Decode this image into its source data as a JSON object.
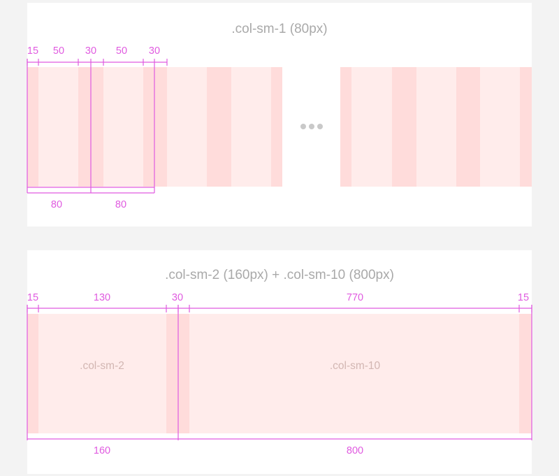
{
  "diagram1": {
    "title": ".col-sm-1 (80px)",
    "top_measures": [
      "15",
      "50",
      "30",
      "50",
      "30"
    ],
    "bottom_measures": [
      "80",
      "80"
    ]
  },
  "diagram2": {
    "title": ".col-sm-2 (160px) + .col-sm-10 (800px)",
    "top_measures": [
      "15",
      "130",
      "30",
      "770",
      "15"
    ],
    "bottom_measures": [
      "160",
      "800"
    ],
    "column_labels": [
      ".col-sm-2",
      ".col-sm-10"
    ]
  },
  "ellipsis_icon": "more-horizontal-icon",
  "colors": {
    "page_background": "#f3f3f3",
    "panel_background": "#ffffff",
    "column_fill": "#ffeceb",
    "gutter_fill": "#ffdcdb",
    "measure_line": "#e05be0",
    "title_text": "#a9a9a9",
    "column_label_text": "#d2b6b2"
  }
}
